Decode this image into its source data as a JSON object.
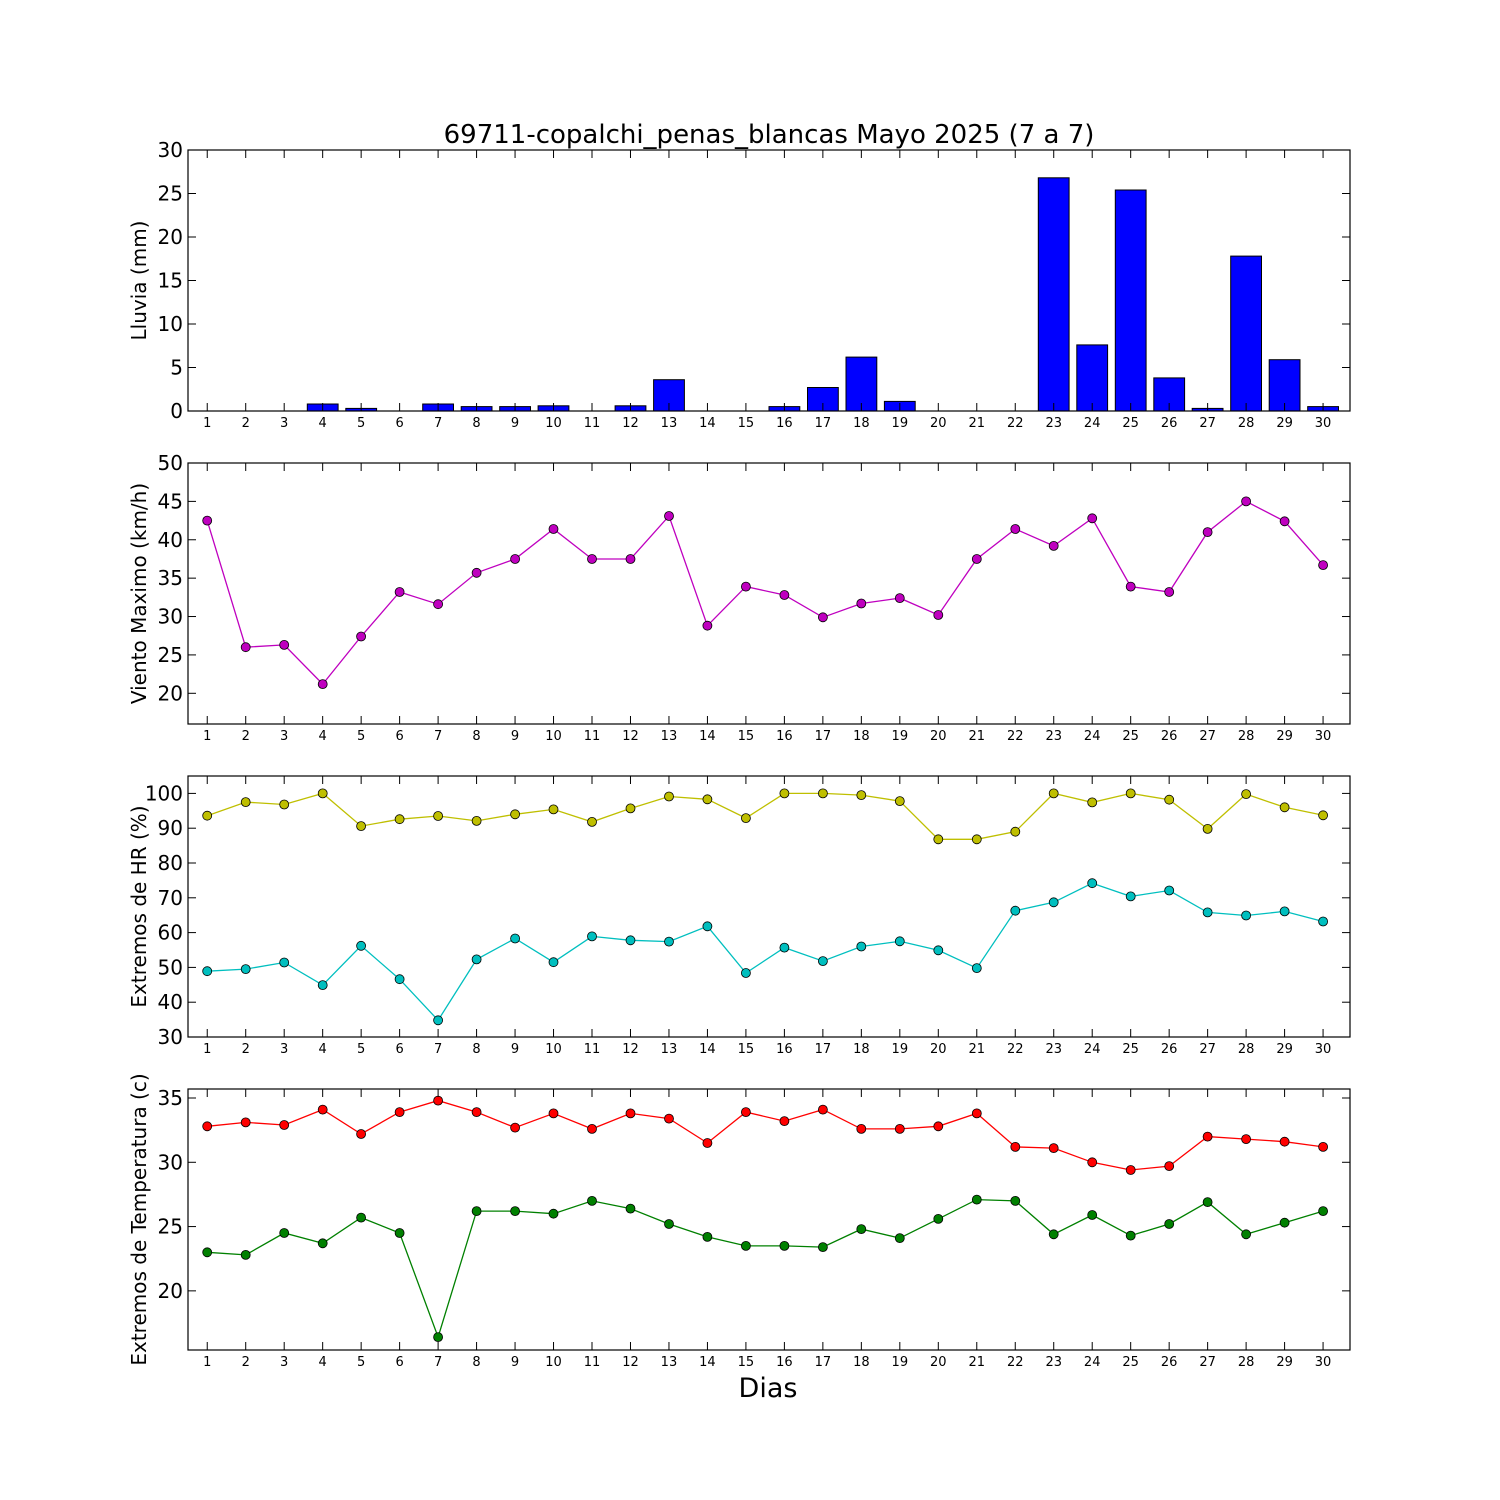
{
  "figure": {
    "title": "69711-copalchi_penas_blancas Mayo 2025  (7 a 7)",
    "xlabel": "Dias"
  },
  "chart_data": [
    {
      "type": "bar",
      "ylabel": "Lluvia (mm)",
      "ylim": [
        0,
        30
      ],
      "yticks": [
        0,
        5,
        10,
        15,
        20,
        25,
        30
      ],
      "categories": [
        "1",
        "2",
        "3",
        "4",
        "5",
        "6",
        "7",
        "8",
        "9",
        "10",
        "11",
        "12",
        "13",
        "14",
        "15",
        "16",
        "17",
        "18",
        "19",
        "20",
        "21",
        "22",
        "23",
        "24",
        "25",
        "26",
        "27",
        "28",
        "29",
        "30"
      ],
      "series": [
        {
          "color": "#0000ff",
          "values": [
            0,
            0,
            0,
            0.8,
            0.3,
            0,
            0.8,
            0.5,
            0.5,
            0.6,
            0,
            0.6,
            3.6,
            0,
            0,
            0.5,
            2.7,
            6.2,
            1.1,
            0,
            0,
            0,
            26.8,
            7.6,
            25.4,
            3.8,
            0.3,
            17.8,
            5.9,
            0.5
          ]
        }
      ],
      "grid": false
    },
    {
      "type": "line",
      "ylabel": "Viento Maximo (km/h)",
      "ylim": [
        16,
        50
      ],
      "yticks": [
        20,
        25,
        30,
        35,
        40,
        45,
        50
      ],
      "categories": [
        "1",
        "2",
        "3",
        "4",
        "5",
        "6",
        "7",
        "8",
        "9",
        "10",
        "11",
        "12",
        "13",
        "14",
        "15",
        "16",
        "17",
        "18",
        "19",
        "20",
        "21",
        "22",
        "23",
        "24",
        "25",
        "26",
        "27",
        "28",
        "29",
        "30"
      ],
      "series": [
        {
          "color": "#bf00bf",
          "values": [
            42.5,
            26.0,
            26.3,
            21.2,
            27.4,
            33.2,
            31.6,
            35.7,
            37.5,
            41.4,
            37.5,
            37.5,
            43.1,
            28.8,
            33.9,
            32.8,
            29.9,
            31.7,
            32.4,
            30.2,
            37.5,
            41.4,
            39.2,
            42.8,
            33.9,
            33.2,
            41.0,
            45.0,
            42.4,
            36.7
          ]
        }
      ],
      "grid": false
    },
    {
      "type": "line",
      "ylabel": "Extremos de HR (%)",
      "ylim": [
        30,
        105
      ],
      "yticks": [
        30,
        40,
        50,
        60,
        70,
        80,
        90,
        100
      ],
      "categories": [
        "1",
        "2",
        "3",
        "4",
        "5",
        "6",
        "7",
        "8",
        "9",
        "10",
        "11",
        "12",
        "13",
        "14",
        "15",
        "16",
        "17",
        "18",
        "19",
        "20",
        "21",
        "22",
        "23",
        "24",
        "25",
        "26",
        "27",
        "28",
        "29",
        "30"
      ],
      "series": [
        {
          "color": "#bfbf00",
          "values": [
            93.6,
            97.5,
            96.8,
            100,
            90.6,
            92.6,
            93.5,
            92.1,
            94.0,
            95.4,
            91.8,
            95.7,
            99.1,
            98.3,
            92.9,
            100,
            100,
            99.5,
            97.8,
            86.8,
            86.8,
            89.0,
            100,
            97.4,
            100,
            98.2,
            89.8,
            99.8,
            96.0,
            93.7
          ]
        },
        {
          "color": "#00bfbf",
          "values": [
            48.9,
            49.5,
            51.4,
            44.9,
            56.2,
            46.6,
            34.8,
            52.3,
            58.3,
            51.5,
            58.9,
            57.8,
            57.4,
            61.8,
            48.4,
            55.7,
            51.8,
            56.0,
            57.5,
            54.9,
            49.8,
            66.3,
            68.7,
            74.2,
            70.4,
            72.1,
            65.8,
            64.9,
            66.1,
            63.2
          ]
        }
      ],
      "grid": false
    },
    {
      "type": "line",
      "ylabel": "Extremos de Temperatura (c)",
      "ylim": [
        15.4,
        35.7
      ],
      "yticks": [
        20,
        25,
        30,
        35
      ],
      "categories": [
        "1",
        "2",
        "3",
        "4",
        "5",
        "6",
        "7",
        "8",
        "9",
        "10",
        "11",
        "12",
        "13",
        "14",
        "15",
        "16",
        "17",
        "18",
        "19",
        "20",
        "21",
        "22",
        "23",
        "24",
        "25",
        "26",
        "27",
        "28",
        "29",
        "30"
      ],
      "series": [
        {
          "color": "#ff0000",
          "values": [
            32.8,
            33.1,
            32.9,
            34.1,
            32.2,
            33.9,
            34.8,
            33.9,
            32.7,
            33.8,
            32.6,
            33.8,
            33.4,
            31.5,
            33.9,
            33.2,
            34.1,
            32.6,
            32.6,
            32.8,
            33.8,
            31.2,
            31.1,
            30.0,
            29.4,
            29.7,
            32.0,
            31.8,
            31.6,
            31.2
          ]
        },
        {
          "color": "#008000",
          "values": [
            23.0,
            22.8,
            24.5,
            23.7,
            25.7,
            24.5,
            16.4,
            26.2,
            26.2,
            26.0,
            27.0,
            26.4,
            25.2,
            24.2,
            23.5,
            23.5,
            23.4,
            24.8,
            24.1,
            25.6,
            27.1,
            27.0,
            24.4,
            25.9,
            24.3,
            25.2,
            26.9,
            24.4,
            25.3,
            26.2
          ]
        }
      ],
      "grid": false
    }
  ]
}
